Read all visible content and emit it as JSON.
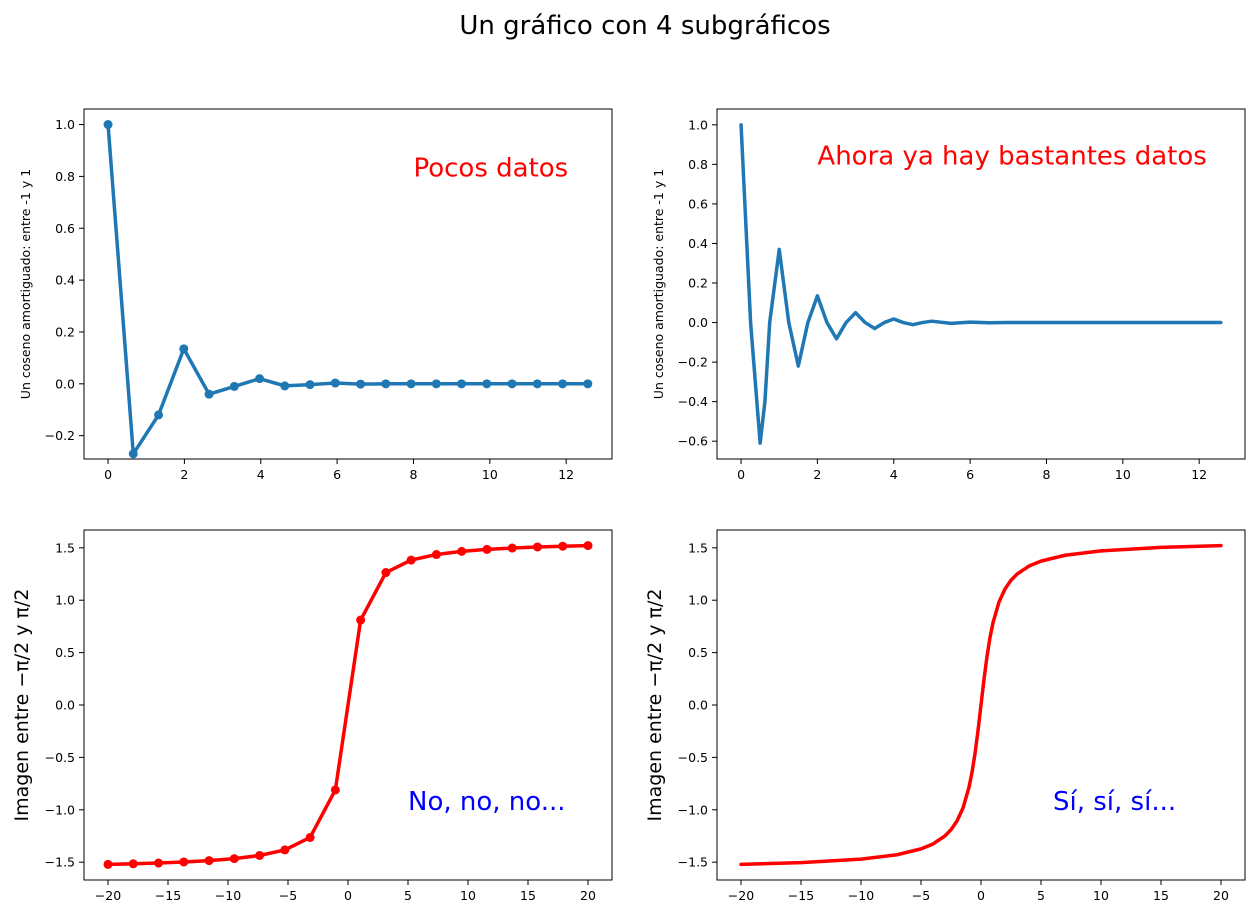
{
  "figure": {
    "suptitle": "Un gráfico con 4 subgráficos"
  },
  "chart_data": [
    {
      "type": "line",
      "markers": true,
      "color": "#1f77b4",
      "ylabel": "Un coseno amortiguado: entre -1 y 1",
      "xlim": [
        -0.63,
        13.2
      ],
      "ylim": [
        -0.29,
        1.06
      ],
      "xticks": [
        0,
        2,
        4,
        6,
        8,
        10,
        12
      ],
      "yticks": [
        -0.2,
        0.0,
        0.2,
        0.4,
        0.6,
        0.8,
        1.0
      ],
      "ytick_labels": [
        "−0.2",
        "0.0",
        "0.2",
        "0.4",
        "0.6",
        "0.8",
        "1.0"
      ],
      "annotation": {
        "text": "Pocos datos",
        "x": 8.0,
        "y": 0.8,
        "color": "#ff0000"
      },
      "x": [
        0,
        0.661,
        1.323,
        1.984,
        2.646,
        3.307,
        3.968,
        4.63,
        5.291,
        5.952,
        6.614,
        7.275,
        7.937,
        8.598,
        9.259,
        9.921,
        10.582,
        11.244,
        11.905,
        12.566
      ],
      "y": [
        1.0,
        -0.27,
        -0.12,
        0.135,
        -0.04,
        -0.01,
        0.02,
        -0.008,
        -0.003,
        0.003,
        -0.001,
        0.0,
        0.0,
        0.0,
        0.0,
        0.0,
        0.0,
        0.0,
        0.0,
        0.0
      ]
    },
    {
      "type": "line",
      "markers": false,
      "color": "#1f77b4",
      "ylabel": "Un coseno amortiguado: entre -1 y 1",
      "xlim": [
        -0.63,
        13.2
      ],
      "ylim": [
        -0.69,
        1.08
      ],
      "xticks": [
        0,
        2,
        4,
        6,
        8,
        10,
        12
      ],
      "yticks": [
        -0.6,
        -0.4,
        -0.2,
        0.0,
        0.2,
        0.4,
        0.6,
        0.8,
        1.0
      ],
      "ytick_labels": [
        "−0.6",
        "−0.4",
        "−0.2",
        "0.0",
        "0.2",
        "0.4",
        "0.6",
        "0.8",
        "1.0"
      ],
      "annotation": {
        "text": "Ahora ya hay bastantes datos",
        "x": 2.0,
        "y": 0.8,
        "color": "#ff0000"
      },
      "x": [
        0,
        0.25,
        0.5,
        0.625,
        0.75,
        1.0,
        1.25,
        1.5,
        1.75,
        2.0,
        2.25,
        2.5,
        2.75,
        3.0,
        3.25,
        3.5,
        3.75,
        4.0,
        4.25,
        4.5,
        4.75,
        5.0,
        5.5,
        6.0,
        6.5,
        7.0,
        8.0,
        9.0,
        10.0,
        11.0,
        12.566
      ],
      "y": [
        1.0,
        0.0,
        -0.61,
        -0.4,
        0.0,
        0.37,
        0.0,
        -0.22,
        0.0,
        0.135,
        0.0,
        -0.082,
        0.0,
        0.05,
        0.0,
        -0.03,
        0.0,
        0.018,
        0.0,
        -0.011,
        0.0,
        0.007,
        -0.004,
        0.002,
        -0.001,
        0.0,
        0.0,
        0.0,
        0.0,
        0.0,
        0.0
      ]
    },
    {
      "type": "line",
      "markers": true,
      "color": "#ff0000",
      "ylabel": "Imagen entre −π/2 y π/2",
      "xlim": [
        -22.0,
        22.0
      ],
      "ylim": [
        -1.67,
        1.67
      ],
      "xticks": [
        -20,
        -15,
        -10,
        -5,
        0,
        5,
        10,
        15,
        20
      ],
      "xtick_labels": [
        "−20",
        "−15",
        "−10",
        "−5",
        "0",
        "5",
        "10",
        "15",
        "20"
      ],
      "yticks": [
        -1.5,
        -1.0,
        -0.5,
        0.0,
        0.5,
        1.0,
        1.5
      ],
      "ytick_labels": [
        "−1.5",
        "−1.0",
        "−0.5",
        "0.0",
        "0.5",
        "1.0",
        "1.5"
      ],
      "annotation": {
        "text": "No, no, no...",
        "x": 5.0,
        "y": -1.0,
        "color": "#0000ff"
      },
      "x": [
        -20,
        -17.895,
        -15.789,
        -13.684,
        -11.579,
        -9.474,
        -7.368,
        -5.263,
        -3.158,
        -1.053,
        1.053,
        3.158,
        5.263,
        7.368,
        9.474,
        11.579,
        13.684,
        15.789,
        17.895,
        20
      ],
      "y": [
        -1.521,
        -1.515,
        -1.508,
        -1.498,
        -1.485,
        -1.466,
        -1.436,
        -1.383,
        -1.264,
        -0.811,
        0.811,
        1.264,
        1.383,
        1.436,
        1.466,
        1.485,
        1.498,
        1.508,
        1.515,
        1.521
      ]
    },
    {
      "type": "line",
      "markers": false,
      "color": "#ff0000",
      "ylabel": "Imagen entre −π/2 y π/2",
      "xlim": [
        -22.0,
        22.0
      ],
      "ylim": [
        -1.67,
        1.67
      ],
      "xticks": [
        -20,
        -15,
        -10,
        -5,
        0,
        5,
        10,
        15,
        20
      ],
      "xtick_labels": [
        "−20",
        "−15",
        "−10",
        "−5",
        "0",
        "5",
        "10",
        "15",
        "20"
      ],
      "yticks": [
        -1.5,
        -1.0,
        -0.5,
        0.0,
        0.5,
        1.0,
        1.5
      ],
      "ytick_labels": [
        "−1.5",
        "−1.0",
        "−0.5",
        "0.0",
        "0.5",
        "1.0",
        "1.5"
      ],
      "annotation": {
        "text": "Sí, sí, sí...",
        "x": 6.0,
        "y": -1.0,
        "color": "#0000ff"
      },
      "x": [
        -20,
        -15,
        -10,
        -7,
        -5,
        -4,
        -3,
        -2.5,
        -2,
        -1.5,
        -1.0,
        -0.75,
        -0.5,
        -0.25,
        0,
        0.25,
        0.5,
        0.75,
        1.0,
        1.5,
        2,
        2.5,
        3,
        4,
        5,
        7,
        10,
        15,
        20
      ],
      "y": [
        -1.521,
        -1.504,
        -1.471,
        -1.429,
        -1.373,
        -1.326,
        -1.249,
        -1.19,
        -1.107,
        -0.983,
        -0.785,
        -0.644,
        -0.464,
        -0.245,
        0,
        0.245,
        0.464,
        0.644,
        0.785,
        0.983,
        1.107,
        1.19,
        1.249,
        1.326,
        1.373,
        1.429,
        1.471,
        1.504,
        1.521
      ]
    }
  ]
}
